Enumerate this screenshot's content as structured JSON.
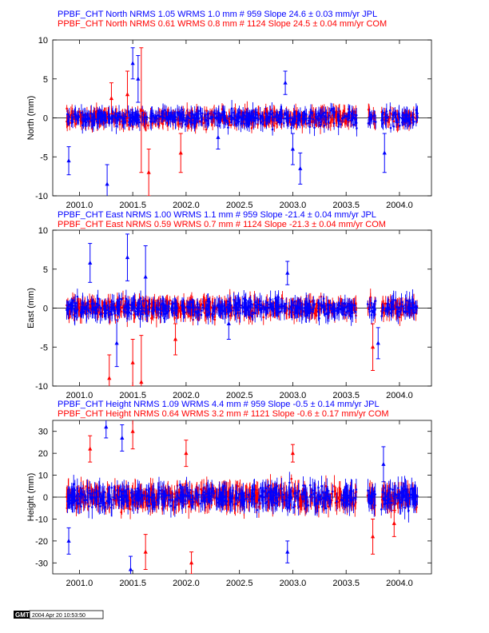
{
  "chart_data": [
    {
      "type": "scatter",
      "ylabel": "North (mm)",
      "ylim": [
        -10,
        10
      ],
      "yticks": [
        -10,
        -5,
        0,
        5,
        10
      ],
      "xlim": [
        2000.75,
        2004.3
      ],
      "xticks": [
        "2001.0",
        "2001.5",
        "2002.0",
        "2002.5",
        "2003.0",
        "2003.5",
        "2004.0"
      ],
      "series": [
        {
          "name": "JPL",
          "color": "#0000ff",
          "header": "PPBF_CHT North NRMS 1.05 WRMS  1.0 mm # 959 Slope   24.6 ±  0.03 mm/yr JPL"
        },
        {
          "name": "COM",
          "color": "#ff0000",
          "header": "PPBF_CHT North NRMS 0.61 WRMS  0.8 mm # 1124 Slope   24.5 ±  0.04 mm/yr COM"
        }
      ],
      "scatter_sd": 0.8,
      "outliers": [
        [
          2000.9,
          -5.5,
          1.8,
          0
        ],
        [
          2001.26,
          -8.5,
          2.5,
          0
        ],
        [
          2001.5,
          7.0,
          2.0,
          0
        ],
        [
          2001.55,
          5.0,
          3.0,
          0
        ],
        [
          2001.65,
          -7.0,
          3.0,
          1
        ],
        [
          2001.95,
          -4.5,
          2.5,
          1
        ],
        [
          2002.93,
          4.5,
          1.5,
          0
        ],
        [
          2003.0,
          -4.0,
          2.0,
          0
        ],
        [
          2003.07,
          -6.5,
          2.0,
          0
        ],
        [
          2003.86,
          -4.5,
          2.5,
          0
        ],
        [
          2001.3,
          2.5,
          2.0,
          1
        ],
        [
          2001.45,
          3.0,
          3.0,
          1
        ],
        [
          2001.58,
          1.0,
          8.0,
          1
        ],
        [
          2002.3,
          -2.5,
          1.5,
          0
        ]
      ]
    },
    {
      "type": "scatter",
      "ylabel": "East (mm)",
      "ylim": [
        -10,
        10
      ],
      "yticks": [
        -10,
        -5,
        0,
        5,
        10
      ],
      "xlim": [
        2000.75,
        2004.3
      ],
      "xticks": [
        "2001.0",
        "2001.5",
        "2002.0",
        "2002.5",
        "2003.0",
        "2003.5",
        "2004.0"
      ],
      "series": [
        {
          "name": "JPL",
          "color": "#0000ff",
          "header": "PPBF_CHT East NRMS 1.00 WRMS  1.1 mm # 959 Slope  -21.4 ±  0.04 mm/yr JPL"
        },
        {
          "name": "COM",
          "color": "#ff0000",
          "header": "PPBF_CHT East NRMS 0.59 WRMS  0.7 mm # 1124 Slope  -21.3 ±  0.04 mm/yr COM"
        }
      ],
      "scatter_sd": 0.9,
      "outliers": [
        [
          2001.1,
          5.8,
          2.5,
          0
        ],
        [
          2001.28,
          -9.0,
          3.0,
          1
        ],
        [
          2001.45,
          6.5,
          3.0,
          0
        ],
        [
          2001.5,
          -7.0,
          3.0,
          1
        ],
        [
          2001.58,
          -9.5,
          6.0,
          1
        ],
        [
          2001.9,
          -4.0,
          2.0,
          1
        ],
        [
          2002.4,
          -2.0,
          2.0,
          0
        ],
        [
          2002.95,
          4.5,
          1.5,
          0
        ],
        [
          2003.75,
          -5.0,
          3.0,
          1
        ],
        [
          2003.8,
          -4.5,
          2.0,
          0
        ],
        [
          2001.62,
          4.0,
          4.0,
          0
        ],
        [
          2001.35,
          -4.5,
          3.0,
          0
        ]
      ]
    },
    {
      "type": "scatter",
      "ylabel": "Height (mm)",
      "ylim": [
        -35,
        35
      ],
      "yticks": [
        -30,
        -20,
        -10,
        0,
        10,
        20,
        30
      ],
      "xlim": [
        2000.75,
        2004.3
      ],
      "xticks": [
        "2001.0",
        "2001.5",
        "2002.0",
        "2002.5",
        "2003.0",
        "2003.5",
        "2004.0"
      ],
      "series": [
        {
          "name": "JPL",
          "color": "#0000ff",
          "header": "PPBF_CHT Height NRMS 1.09 WRMS  4.4 mm # 959 Slope   -0.5 ±  0.14 mm/yr JPL"
        },
        {
          "name": "COM",
          "color": "#ff0000",
          "header": "PPBF_CHT Height NRMS 0.64 WRMS  3.2 mm # 1121 Slope   -0.6 ±  0.17 mm/yr COM"
        }
      ],
      "scatter_sd": 4.0,
      "outliers": [
        [
          2000.9,
          -20.0,
          6.0,
          0
        ],
        [
          2001.25,
          32.0,
          5.0,
          0
        ],
        [
          2001.4,
          27.0,
          6.0,
          0
        ],
        [
          2001.48,
          -33.0,
          6.0,
          0
        ],
        [
          2001.5,
          30.0,
          8.0,
          1
        ],
        [
          2001.62,
          -25.0,
          8.0,
          1
        ],
        [
          2002.0,
          20.0,
          6.0,
          1
        ],
        [
          2002.95,
          -25.0,
          5.0,
          0
        ],
        [
          2003.0,
          20.0,
          4.0,
          1
        ],
        [
          2003.75,
          -18.0,
          8.0,
          1
        ],
        [
          2003.85,
          15.0,
          8.0,
          0
        ],
        [
          2003.95,
          -12.0,
          6.0,
          1
        ],
        [
          2001.1,
          22.0,
          6.0,
          1
        ],
        [
          2002.05,
          -30.0,
          5.0,
          1
        ]
      ]
    }
  ],
  "footer": {
    "logo": "GMT",
    "timestamp": "2004 Apr 20 10:53:50"
  }
}
